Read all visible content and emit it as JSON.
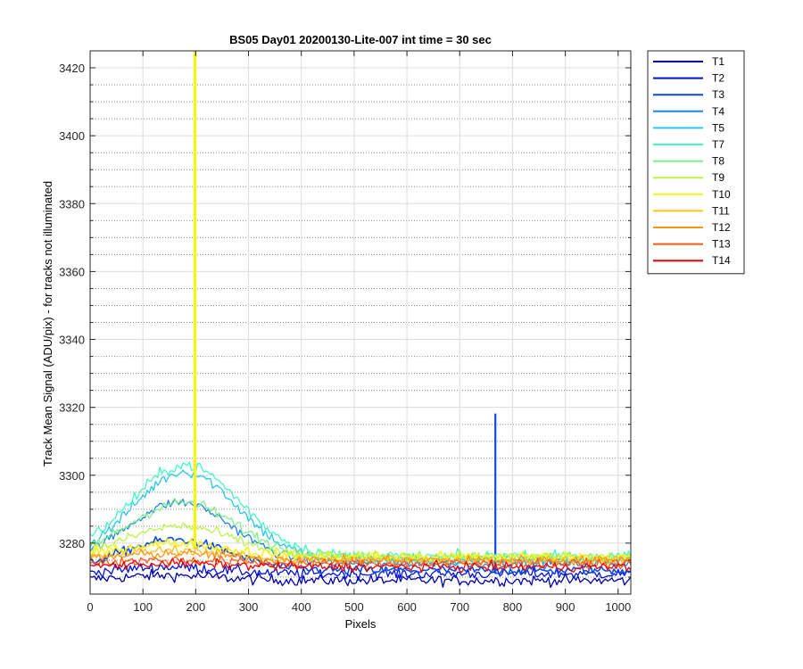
{
  "chart_data": {
    "type": "line",
    "title": "BS05 Day01 20200130-Lite-007 int time = 30 sec",
    "xlabel": "Pixels",
    "ylabel": "Track Mean Signal (ADU/pix) - for tracks not illuminated",
    "xlim": [
      0,
      1024
    ],
    "ylim": [
      3265,
      3425
    ],
    "x_ticks": [
      0,
      100,
      200,
      300,
      400,
      500,
      600,
      700,
      800,
      900,
      1000
    ],
    "y_ticks": [
      3280,
      3300,
      3320,
      3340,
      3360,
      3380,
      3400,
      3420
    ],
    "y_minor_ticks": [
      3270,
      3275,
      3285,
      3290,
      3295,
      3305,
      3310,
      3315,
      3325,
      3330,
      3335,
      3345,
      3350,
      3355,
      3365,
      3370,
      3375,
      3385,
      3390,
      3395,
      3405,
      3410,
      3415
    ],
    "grid": true,
    "minor_grid": true,
    "legend_position": "outside-right",
    "x_step": 4,
    "series": [
      {
        "name": "T1",
        "color": "#0000AA",
        "baseline": 3269,
        "bump_peak": 3270.5,
        "bump_center": 150,
        "bump_width": 130,
        "noise": 1.5
      },
      {
        "name": "T2",
        "color": "#0014D5",
        "baseline": 3271,
        "bump_peak": 3273,
        "bump_center": 150,
        "bump_width": 130,
        "noise": 1.5
      },
      {
        "name": "T3",
        "color": "#0A4BE6",
        "baseline": 3272,
        "bump_peak": 3281,
        "bump_center": 160,
        "bump_width": 140,
        "noise": 1.3,
        "spikes": [
          {
            "x": 767,
            "value": 3318
          }
        ]
      },
      {
        "name": "T4",
        "color": "#1F86E8",
        "baseline": 3274,
        "bump_peak": 3292,
        "bump_center": 170,
        "bump_width": 140,
        "noise": 1.3
      },
      {
        "name": "T5",
        "color": "#29C6EC",
        "baseline": 3275,
        "bump_peak": 3301,
        "bump_center": 180,
        "bump_width": 140,
        "noise": 1.5
      },
      {
        "name": "T7",
        "color": "#45F5C5",
        "baseline": 3276,
        "bump_peak": 3303,
        "bump_center": 180,
        "bump_width": 145,
        "noise": 1.6
      },
      {
        "name": "T8",
        "color": "#7EEE8A",
        "baseline": 3276,
        "bump_peak": 3292,
        "bump_center": 175,
        "bump_width": 140,
        "noise": 1.5
      },
      {
        "name": "T9",
        "color": "#BCF24A",
        "baseline": 3276,
        "bump_peak": 3285,
        "bump_center": 170,
        "bump_width": 140,
        "noise": 1.4
      },
      {
        "name": "T10",
        "color": "#F5F51A",
        "baseline": 3276,
        "bump_peak": 3280,
        "bump_center": 160,
        "bump_width": 140,
        "noise": 1.4,
        "spikes": [
          {
            "x": 197,
            "value": 3425
          },
          {
            "x": 199,
            "value": 3425
          }
        ]
      },
      {
        "name": "T11",
        "color": "#FFC21F",
        "baseline": 3275,
        "bump_peak": 3278,
        "bump_center": 160,
        "bump_width": 140,
        "noise": 1.3
      },
      {
        "name": "T12",
        "color": "#FF9418",
        "baseline": 3275,
        "bump_peak": 3277,
        "bump_center": 160,
        "bump_width": 140,
        "noise": 1.3
      },
      {
        "name": "T13",
        "color": "#FF5A10",
        "baseline": 3274,
        "bump_peak": 3275,
        "bump_center": 160,
        "bump_width": 140,
        "noise": 1.3
      },
      {
        "name": "T14",
        "color": "#EE0000",
        "baseline": 3273,
        "bump_peak": 3274,
        "bump_center": 160,
        "bump_width": 140,
        "noise": 1.3
      }
    ]
  }
}
